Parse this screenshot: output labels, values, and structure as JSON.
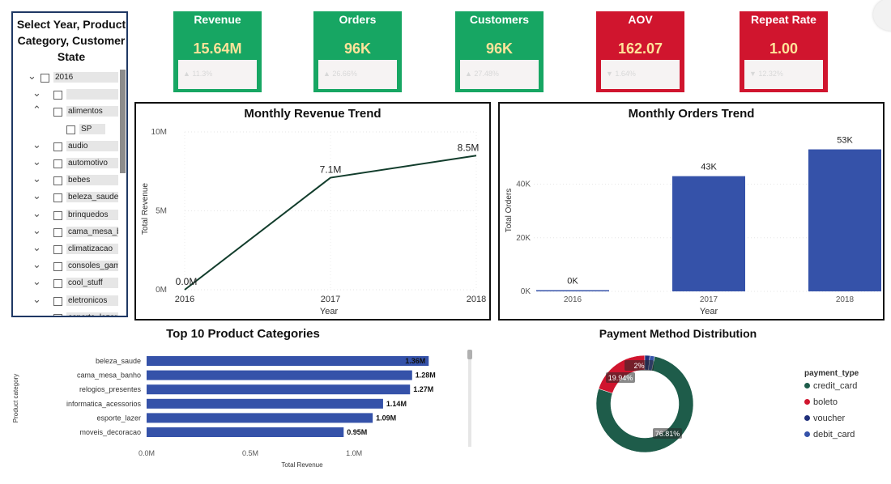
{
  "slicer": {
    "title": "Select Year, Product Category, Customer State",
    "items": [
      {
        "label": "2016",
        "chev": "v",
        "level": 0,
        "checkbox": true
      },
      {
        "label": "",
        "chev": "v",
        "level": 1,
        "checkbox": true
      },
      {
        "label": "alimentos",
        "chev": "^",
        "level": 1,
        "checkbox": true
      },
      {
        "label": "SP",
        "chev": "",
        "level": 2,
        "checkbox": true
      },
      {
        "label": "audio",
        "chev": "v",
        "level": 1,
        "checkbox": true
      },
      {
        "label": "automotivo",
        "chev": "v",
        "level": 1,
        "checkbox": true
      },
      {
        "label": "bebes",
        "chev": "v",
        "level": 1,
        "checkbox": true
      },
      {
        "label": "beleza_saude",
        "chev": "v",
        "level": 1,
        "checkbox": true
      },
      {
        "label": "brinquedos",
        "chev": "v",
        "level": 1,
        "checkbox": true
      },
      {
        "label": "cama_mesa_ba...",
        "chev": "v",
        "level": 1,
        "checkbox": true
      },
      {
        "label": "climatizacao",
        "chev": "v",
        "level": 1,
        "checkbox": true
      },
      {
        "label": "consoles_games",
        "chev": "v",
        "level": 1,
        "checkbox": true
      },
      {
        "label": "cool_stuff",
        "chev": "v",
        "level": 1,
        "checkbox": true
      },
      {
        "label": "eletronicos",
        "chev": "v",
        "level": 1,
        "checkbox": true
      },
      {
        "label": "esporte_lazer",
        "chev": "v",
        "level": 1,
        "checkbox": true
      }
    ]
  },
  "kpis": [
    {
      "title": "Revenue",
      "value": "15.64M",
      "delta": "▲ 11.3%",
      "status": "good"
    },
    {
      "title": "Orders",
      "value": "96K",
      "delta": "▲ 26.66%",
      "status": "good"
    },
    {
      "title": "Customers",
      "value": "96K",
      "delta": "▲ 27.48%",
      "status": "good"
    },
    {
      "title": "AOV",
      "value": "162.07",
      "delta": "▼ 1.64%",
      "status": "bad"
    },
    {
      "title": "Repeat Rate",
      "value": "1.00",
      "delta": "▼ 12.32%",
      "status": "bad"
    }
  ],
  "colors": {
    "good": "#17a663",
    "bad": "#d0152e",
    "bar": "#3552a9",
    "line": "#123d2c",
    "credit_card": "#1e5c4a",
    "boleto": "#d0152e",
    "voucher": "#1f2f7a",
    "debit_card": "#3552a9"
  },
  "revenue_chart": {
    "title": "Monthly Revenue Trend",
    "xlabel": "Year",
    "ylabel": "Total Revenue",
    "yticks": [
      "0M",
      "5M",
      "10M"
    ]
  },
  "orders_chart": {
    "title": "Monthly Orders Trend",
    "xlabel": "Year",
    "ylabel": "Total Orders",
    "yticks": [
      "0K",
      "20K",
      "40K"
    ]
  },
  "categories_chart": {
    "title": "Top 10 Product Categories",
    "xlabel": "Total Revenue",
    "ylabel": "Product category",
    "xticks": [
      "0.0M",
      "0.5M",
      "1.0M"
    ]
  },
  "payment_chart": {
    "title": "Payment Method Distribution",
    "legend_title": "payment_type"
  },
  "chart_data": [
    {
      "type": "line",
      "title": "Monthly Revenue Trend",
      "xlabel": "Year",
      "ylabel": "Total Revenue",
      "x": [
        "2016",
        "2017",
        "2018"
      ],
      "values": [
        0.0,
        7.1,
        8.5
      ],
      "labels": [
        "0.0M",
        "7.1M",
        "8.5M"
      ],
      "ylim": [
        0,
        10
      ]
    },
    {
      "type": "bar",
      "title": "Monthly Orders Trend",
      "xlabel": "Year",
      "ylabel": "Total Orders",
      "categories": [
        "2016",
        "2017",
        "2018"
      ],
      "values": [
        0.3,
        43,
        53
      ],
      "labels": [
        "0K",
        "43K",
        "53K"
      ],
      "ylim": [
        0,
        58
      ]
    },
    {
      "type": "bar",
      "orientation": "horizontal",
      "title": "Top 10 Product Categories",
      "xlabel": "Total Revenue",
      "ylabel": "Product category",
      "categories": [
        "beleza_saude",
        "cama_mesa_banho",
        "relogios_presentes",
        "informatica_acessorios",
        "esporte_lazer",
        "moveis_decoracao"
      ],
      "values": [
        1.36,
        1.28,
        1.27,
        1.14,
        1.09,
        0.95
      ],
      "labels": [
        "1.36M",
        "1.28M",
        "1.27M",
        "1.14M",
        "1.09M",
        "0.95M"
      ],
      "xlim": [
        0,
        1.48
      ]
    },
    {
      "type": "pie",
      "title": "Payment Method Distribution",
      "legend_title": "payment_type",
      "categories": [
        "credit_card",
        "boleto",
        "voucher",
        "debit_card"
      ],
      "values": [
        76.81,
        19.94,
        1.7,
        1.55
      ],
      "labels": [
        "76.81%",
        "19.94%",
        "2%",
        ""
      ]
    }
  ]
}
